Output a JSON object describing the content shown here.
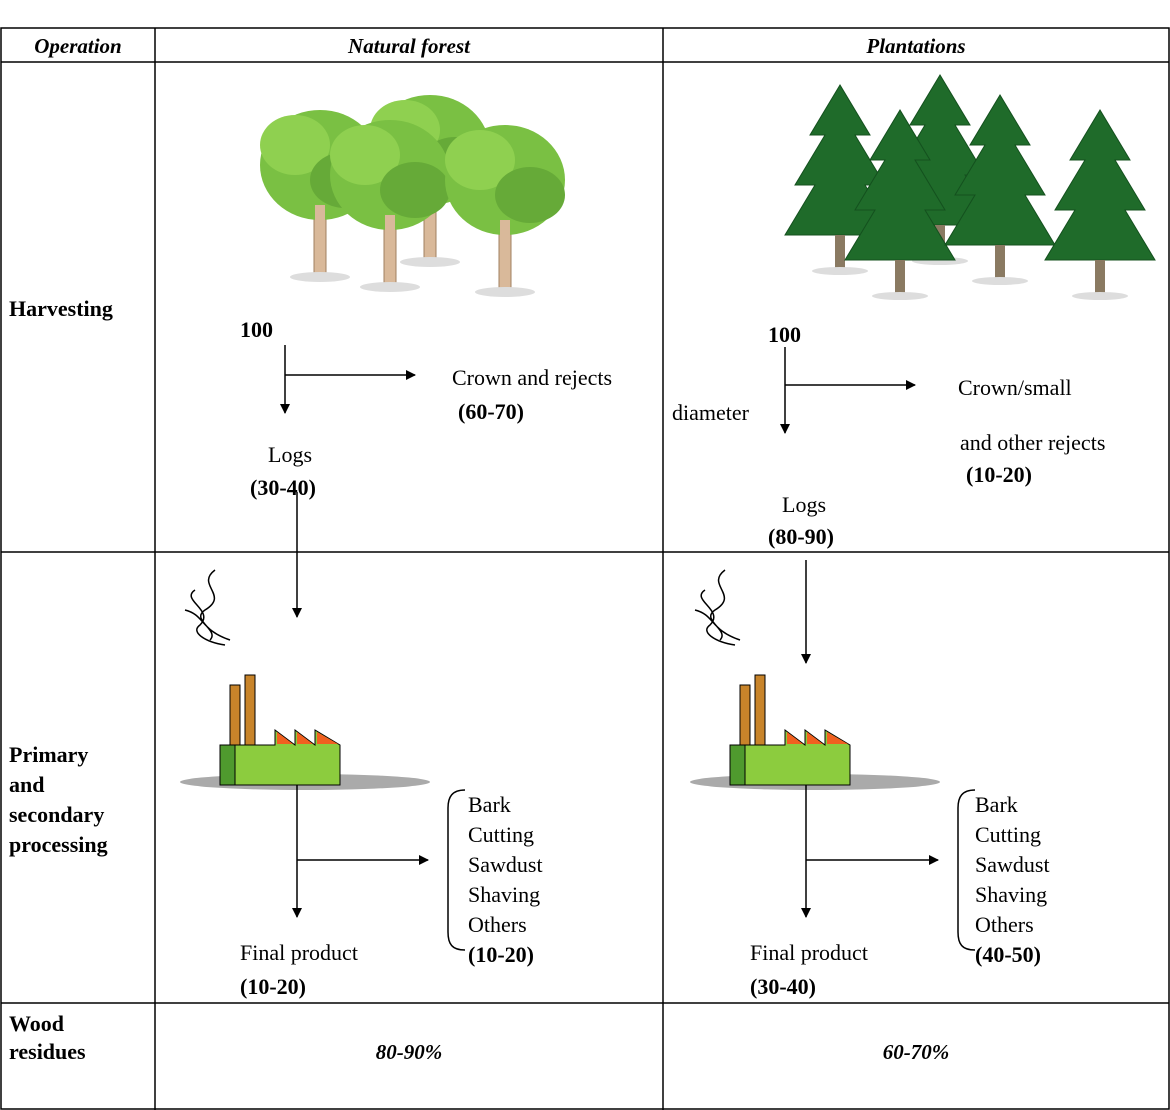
{
  "table": {
    "header": [
      "Operation",
      "Natural forest",
      "Plantations"
    ],
    "rows": [
      {
        "label": "Harvesting",
        "natural_forest": {
          "start": "100",
          "side": "Crown and rejects",
          "side_share": "(60-70)",
          "main": "Logs",
          "main_share": "(30-40)"
        },
        "plantations": {
          "start": "100",
          "side": [
            "Crown/small",
            "diameter",
            "and other rejects"
          ],
          "side_share": "(10-20)",
          "main": "Logs",
          "main_share": "(80-90)"
        }
      },
      {
        "label": [
          "Primary",
          "and",
          "secondary",
          "processing"
        ],
        "natural_forest": {
          "main": "Final product",
          "main_share": "(10-20)",
          "residues": [
            "Bark",
            "Cutting",
            "Sawdust",
            "Shaving",
            "Others"
          ],
          "residues_share": "(10-20)"
        },
        "plantations": {
          "main": "Final product",
          "main_share": "(30-40)",
          "residues": [
            "Bark",
            "Cutting",
            "Sawdust",
            "Shaving",
            "Others"
          ],
          "residues_share": "(40-50)"
        }
      },
      {
        "label": [
          "Wood",
          "residues"
        ],
        "natural_forest": "80-90%",
        "plantations": "60-70%"
      }
    ]
  }
}
